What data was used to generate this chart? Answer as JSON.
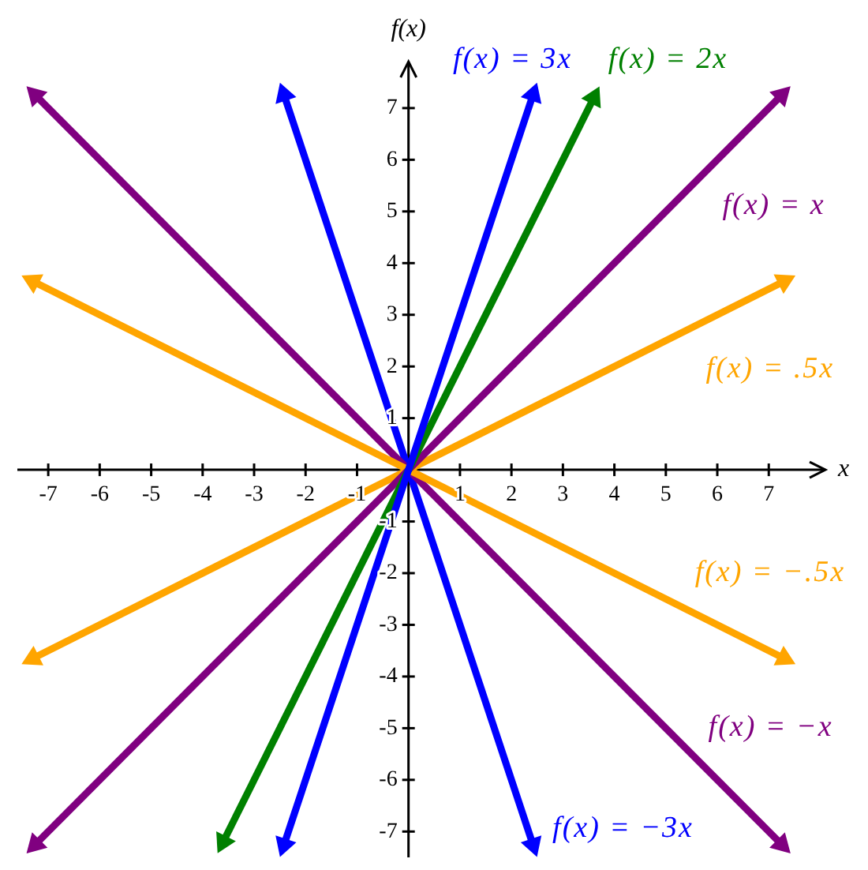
{
  "chart_data": {
    "type": "line",
    "xlabel": "x",
    "ylabel": "f(x)",
    "xlim": [
      -7.6,
      8.1
    ],
    "ylim": [
      -7.5,
      7.9
    ],
    "xticks": [
      -7,
      -6,
      -5,
      -4,
      -3,
      -2,
      -1,
      1,
      2,
      3,
      4,
      5,
      6,
      7
    ],
    "yticks": [
      -7,
      -6,
      -5,
      -4,
      -3,
      -2,
      -1,
      1,
      2,
      3,
      4,
      5,
      6,
      7
    ],
    "marker": "triangle",
    "line_style": "solid",
    "series": [
      {
        "name": "f(x) = 3x",
        "color": "#0000ff",
        "x": [
          -2.42,
          2.42
        ],
        "values": [
          -7.26,
          7.26
        ]
      },
      {
        "name": "f(x) = 2x",
        "color": "#008000",
        "x": [
          -3.6,
          3.6
        ],
        "values": [
          -7.2,
          7.2
        ]
      },
      {
        "name": "f(x) = x",
        "color": "#800080",
        "x": [
          -7.25,
          7.25
        ],
        "values": [
          -7.25,
          7.25
        ]
      },
      {
        "name": "f(x) = .5x",
        "color": "#ffa500",
        "x": [
          -7.3,
          7.3
        ],
        "values": [
          -3.65,
          3.65
        ]
      },
      {
        "name": "f(x) = −.5x",
        "color": "#ffa500",
        "x": [
          -7.3,
          7.3
        ],
        "values": [
          3.65,
          -3.65
        ]
      },
      {
        "name": "f(x) = −x",
        "color": "#800080",
        "x": [
          -7.25,
          7.25
        ],
        "values": [
          7.25,
          -7.25
        ]
      },
      {
        "name": "f(x) = −3x",
        "color": "#0000ff",
        "x": [
          -2.42,
          2.42
        ],
        "values": [
          7.26,
          -7.26
        ]
      }
    ]
  }
}
